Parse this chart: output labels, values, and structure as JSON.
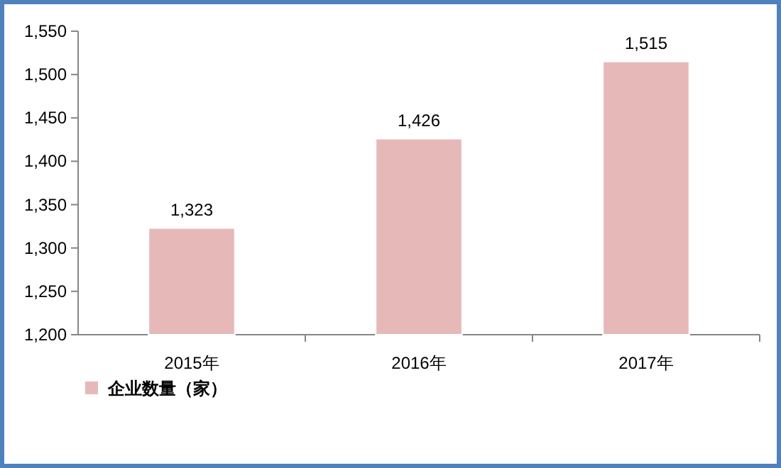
{
  "chart_data": {
    "type": "bar",
    "categories": [
      "2015年",
      "2016年",
      "2017年"
    ],
    "series": [
      {
        "name": "企业数量（家）",
        "color": "#e6b9b8",
        "values": [
          1323,
          1426,
          1515
        ],
        "value_labels": [
          "1,323",
          "1,426",
          "1,515"
        ]
      }
    ],
    "ylim": [
      1200,
      1550
    ],
    "yticks": [
      {
        "value": 1200,
        "label": "1,200"
      },
      {
        "value": 1250,
        "label": "1,250"
      },
      {
        "value": 1300,
        "label": "1,300"
      },
      {
        "value": 1350,
        "label": "1,350"
      },
      {
        "value": 1400,
        "label": "1,400"
      },
      {
        "value": 1450,
        "label": "1,450"
      },
      {
        "value": 1500,
        "label": "1,500"
      },
      {
        "value": 1550,
        "label": "1,550"
      }
    ],
    "legend": "bottom left"
  }
}
